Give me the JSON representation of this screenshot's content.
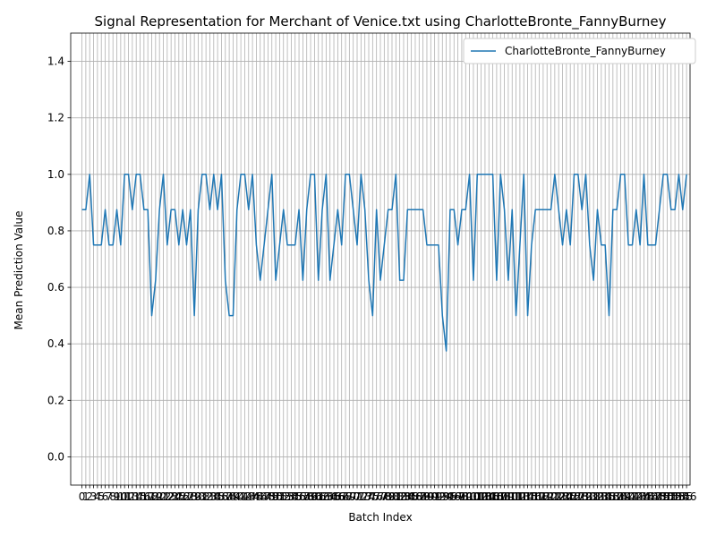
{
  "chart_data": {
    "type": "line",
    "title": "Signal Representation for Merchant of Venice.txt using CharlotteBronte_FannyBurney",
    "xlabel": "Batch Index",
    "ylabel": "Mean Prediction Value",
    "ylim": [
      -0.1,
      1.5
    ],
    "xlim": [
      -2.9,
      156.9
    ],
    "yticks": [
      0.0,
      0.2,
      0.4,
      0.6,
      0.8,
      1.0,
      1.2,
      1.4
    ],
    "grid": true,
    "legend_position": "top-right",
    "colors": {
      "series": "#1f77b4",
      "grid": "#b0b0b0",
      "frame": "#000000"
    },
    "series": [
      {
        "name": "CharlotteBronte_FannyBurney",
        "values": [
          0.875,
          0.875,
          1.0,
          0.75,
          0.75,
          0.75,
          0.875,
          0.75,
          0.75,
          0.875,
          0.75,
          1.0,
          1.0,
          0.875,
          1.0,
          1.0,
          0.875,
          0.875,
          0.5,
          0.625,
          0.875,
          1.0,
          0.75,
          0.875,
          0.875,
          0.75,
          0.875,
          0.75,
          0.875,
          0.5,
          0.875,
          1.0,
          1.0,
          0.875,
          1.0,
          0.875,
          1.0,
          0.625,
          0.5,
          0.5,
          0.875,
          1.0,
          1.0,
          0.875,
          1.0,
          0.75,
          0.625,
          0.75,
          0.875,
          1.0,
          0.625,
          0.75,
          0.875,
          0.75,
          0.75,
          0.75,
          0.875,
          0.625,
          0.875,
          1.0,
          1.0,
          0.625,
          0.875,
          1.0,
          0.625,
          0.75,
          0.875,
          0.75,
          1.0,
          1.0,
          0.875,
          0.75,
          1.0,
          0.875,
          0.625,
          0.5,
          0.875,
          0.625,
          0.75,
          0.875,
          0.875,
          1.0,
          0.625,
          0.625,
          0.875,
          0.875,
          0.875,
          0.875,
          0.875,
          0.75,
          0.75,
          0.75,
          0.75,
          0.5,
          0.375,
          0.875,
          0.875,
          0.75,
          0.875,
          0.875,
          1.0,
          0.625,
          1.0,
          1.0,
          1.0,
          1.0,
          1.0,
          0.625,
          1.0,
          0.875,
          0.625,
          0.875,
          0.5,
          0.75,
          1.0,
          0.5,
          0.75,
          0.875,
          0.875,
          0.875,
          0.875,
          0.875,
          1.0,
          0.875,
          0.75,
          0.875,
          0.75,
          1.0,
          1.0,
          0.875,
          1.0,
          0.75,
          0.625,
          0.875,
          0.75,
          0.75,
          0.5,
          0.875,
          0.875,
          1.0,
          1.0,
          0.75,
          0.75,
          0.875,
          0.75,
          1.0,
          0.75,
          0.75,
          0.75,
          0.875,
          1.0,
          1.0,
          0.875,
          0.875,
          1.0,
          0.875,
          1.0
        ]
      }
    ]
  }
}
